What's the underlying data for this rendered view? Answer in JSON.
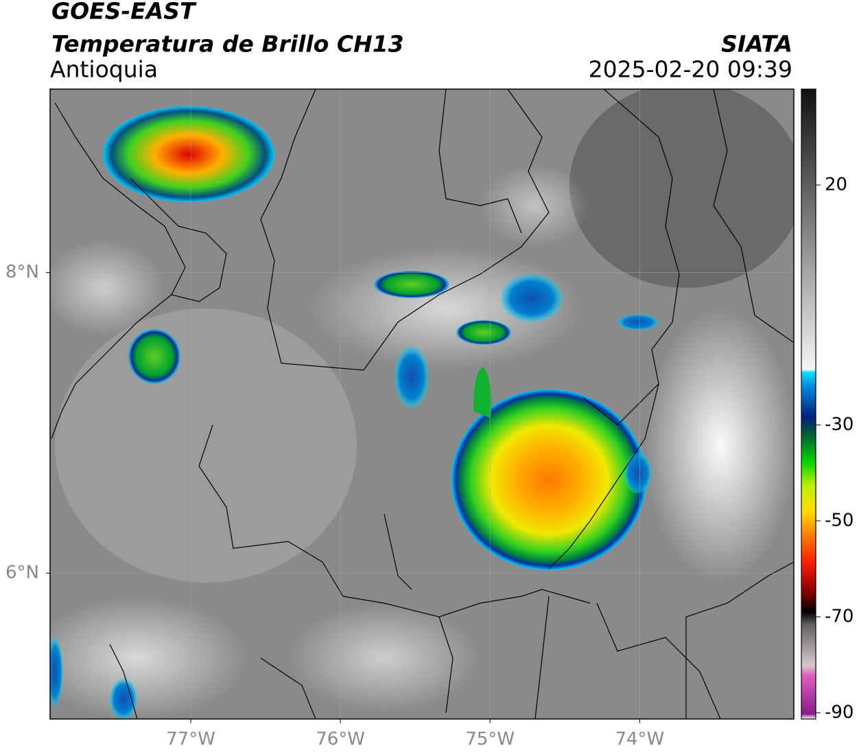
{
  "header": {
    "satellite": "GOES-EAST",
    "product": "Temperatura de Brillo CH13",
    "region": "Antioquia",
    "source": "SIATA",
    "datetime": "2025-02-20 09:39"
  },
  "map": {
    "xlim": [
      -77.94,
      -72.97
    ],
    "ylim": [
      5.03,
      9.22
    ],
    "xticks": [
      {
        "value": -77,
        "label": "77°W"
      },
      {
        "value": -76,
        "label": "76°W"
      },
      {
        "value": -75,
        "label": "75°W"
      },
      {
        "value": -74,
        "label": "74°W"
      }
    ],
    "yticks": [
      {
        "value": 8,
        "label": "8°N"
      },
      {
        "value": 6,
        "label": "6°N"
      }
    ]
  },
  "colorbar": {
    "lim": [
      -91.3,
      40
    ],
    "ticks": [
      20,
      -30,
      -50,
      -70,
      -90
    ]
  }
}
